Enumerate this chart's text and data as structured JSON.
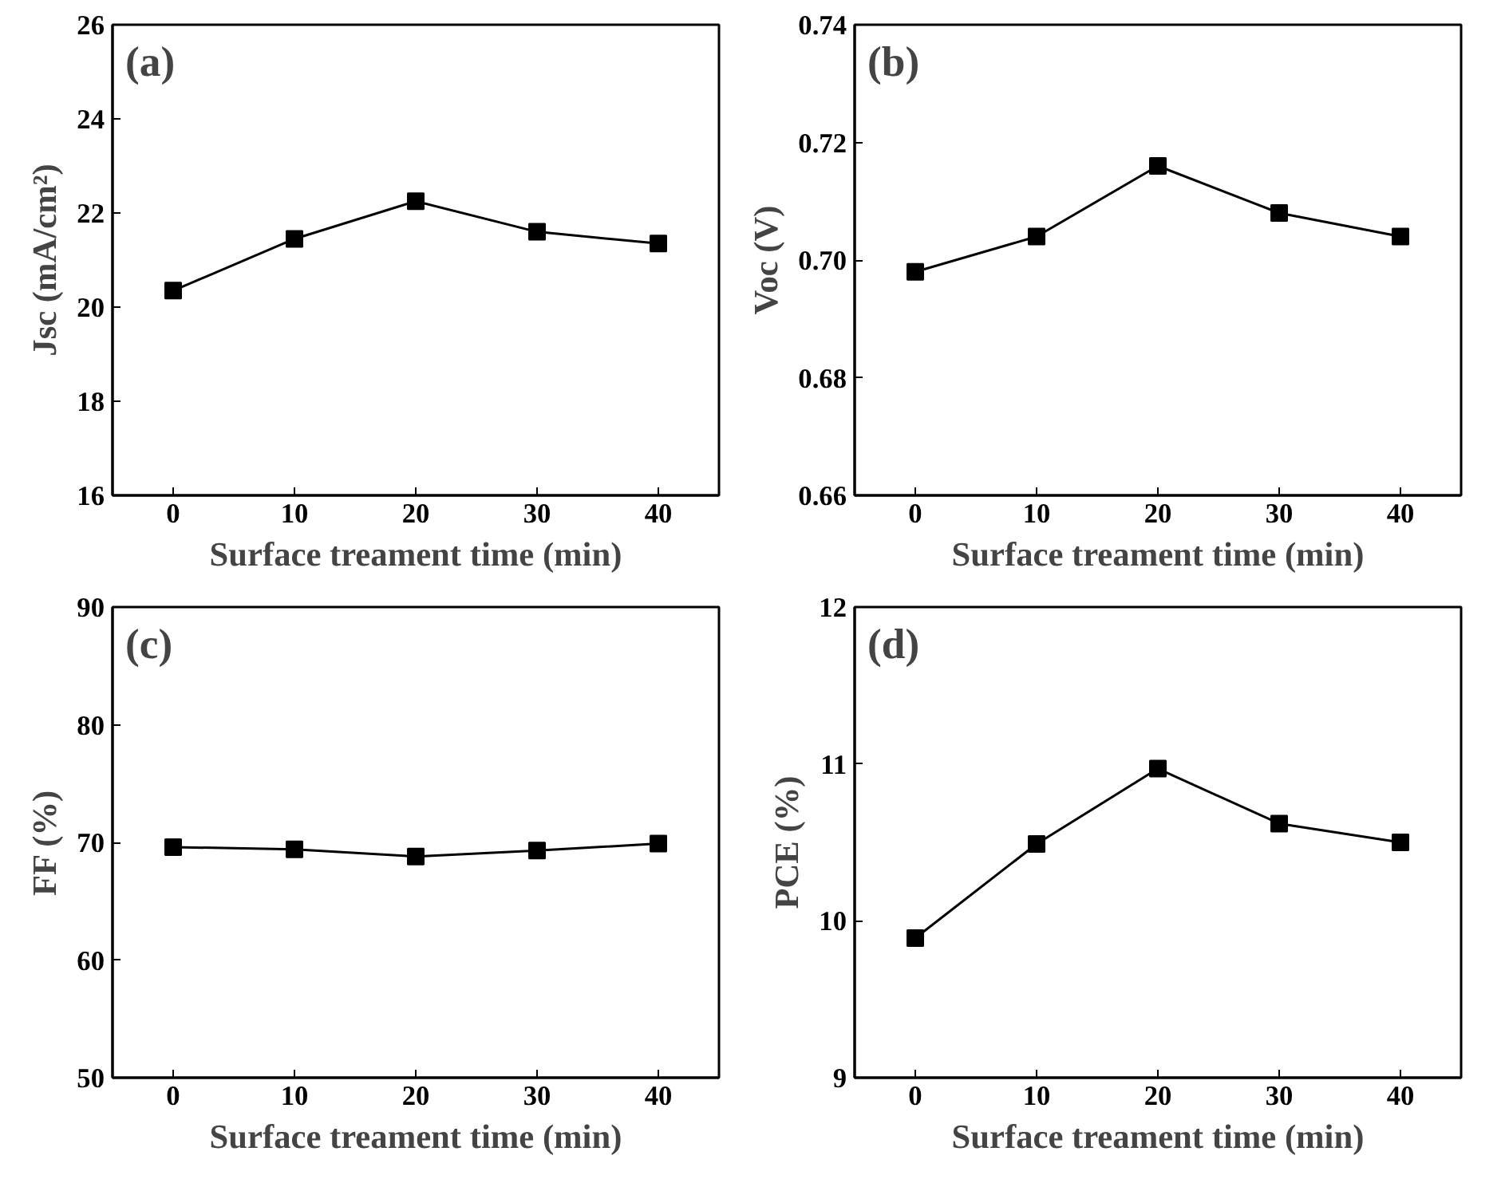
{
  "chart_data": [
    {
      "type": "line",
      "annotations": [
        "(a)"
      ],
      "xlabel": "Surface treament time (min)",
      "ylabel": "Jsc (mA/cm²)",
      "x": [
        0,
        10,
        20,
        30,
        40
      ],
      "values": [
        20.35,
        21.45,
        22.25,
        21.6,
        21.35
      ],
      "color": "#000000",
      "marker": "square",
      "xlim": [
        -5,
        45
      ],
      "xticks": [
        0,
        10,
        20,
        30,
        40
      ],
      "ylim": [
        16,
        26
      ],
      "yticks": [
        16,
        18,
        20,
        22,
        24,
        26
      ]
    },
    {
      "type": "line",
      "annotations": [
        "(b)"
      ],
      "xlabel": "Surface treament time (min)",
      "ylabel": "Voc (V)",
      "x": [
        0,
        10,
        20,
        30,
        40
      ],
      "values": [
        0.698,
        0.704,
        0.716,
        0.708,
        0.704
      ],
      "color": "#000000",
      "marker": "square",
      "xlim": [
        -5,
        45
      ],
      "xticks": [
        0,
        10,
        20,
        30,
        40
      ],
      "ylim": [
        0.66,
        0.74
      ],
      "yticks": [
        0.66,
        0.68,
        {
          "value": 0.7,
          "label": "0.70"
        },
        0.72,
        0.74
      ]
    },
    {
      "type": "line",
      "annotations": [
        "(c)"
      ],
      "xlabel": "Surface treament time (min)",
      "ylabel": "FF (%)",
      "x": [
        0,
        10,
        20,
        30,
        40
      ],
      "values": [
        69.6,
        69.4,
        68.8,
        69.3,
        69.9
      ],
      "color": "#000000",
      "marker": "square",
      "xlim": [
        -5,
        45
      ],
      "xticks": [
        0,
        10,
        20,
        30,
        40
      ],
      "ylim": [
        50,
        90
      ],
      "yticks": [
        50,
        60,
        70,
        80,
        90
      ]
    },
    {
      "type": "line",
      "annotations": [
        "(d)"
      ],
      "xlabel": "Surface treament time (min)",
      "ylabel": "PCE (%)",
      "x": [
        0,
        10,
        20,
        30,
        40
      ],
      "values": [
        9.89,
        10.49,
        10.97,
        10.62,
        10.5
      ],
      "color": "#000000",
      "marker": "square",
      "xlim": [
        -5,
        45
      ],
      "xticks": [
        0,
        10,
        20,
        30,
        40
      ],
      "ylim": [
        9,
        12
      ],
      "yticks": [
        9,
        10,
        11,
        12
      ]
    }
  ]
}
